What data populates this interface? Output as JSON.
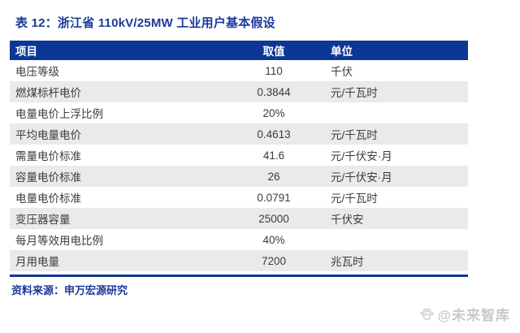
{
  "page": {
    "title": "表 12：浙江省 110kV/25MW 工业用户基本假设"
  },
  "table": {
    "columns": {
      "item": "项目",
      "value": "取值",
      "unit": "单位"
    },
    "rows": [
      {
        "item": "电压等级",
        "value": "110",
        "unit": "千伏"
      },
      {
        "item": "燃煤标杆电价",
        "value": "0.3844",
        "unit": "元/千瓦时"
      },
      {
        "item": "电量电价上浮比例",
        "value": "20%",
        "unit": ""
      },
      {
        "item": "平均电量电价",
        "value": "0.4613",
        "unit": "元/千瓦时"
      },
      {
        "item": "需量电价标准",
        "value": "41.6",
        "unit": "元/千伏安·月"
      },
      {
        "item": "容量电价标准",
        "value": "26",
        "unit": "元/千伏安·月"
      },
      {
        "item": "电量电价标准",
        "value": "0.0791",
        "unit": "元/千瓦时"
      },
      {
        "item": "变压器容量",
        "value": "25000",
        "unit": "千伏安"
      },
      {
        "item": "每月等效用电比例",
        "value": "40%",
        "unit": ""
      },
      {
        "item": "月用电量",
        "value": "7200",
        "unit": "兆瓦时"
      }
    ]
  },
  "footer": {
    "source_label": "资料来源：申万宏源研究"
  },
  "watermark": {
    "label": "@未来智库",
    "icon": "paw-icon"
  },
  "colors": {
    "header_bg": "#0D3796",
    "title_text": "#1C3A9C",
    "row_alt_bg": "#EAEAEA",
    "body_text": "#3C3C3C",
    "watermark": "#C9C9C9"
  }
}
